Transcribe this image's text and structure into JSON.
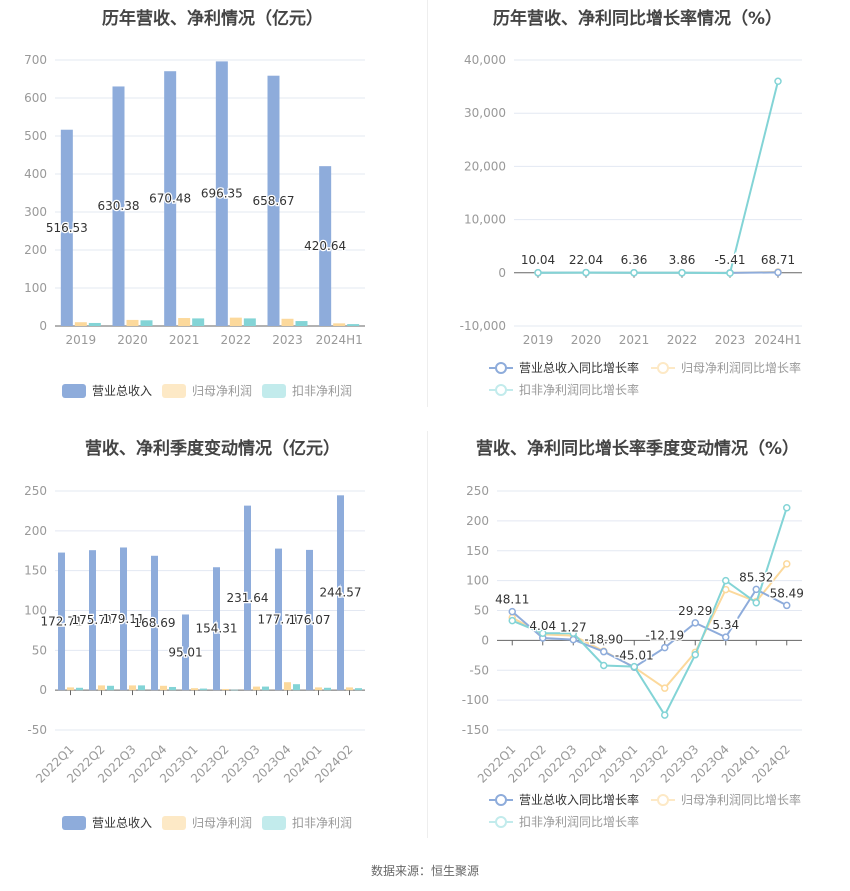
{
  "footer": {
    "source_label": "数据来源：恒生聚源"
  },
  "colors": {
    "revenue": "#8eacdb",
    "net_profit": "#fcd99c",
    "deducted_profit": "#83d4d6",
    "grid": "#e3e8f2",
    "axis": "#666666",
    "tick_text": "#999999",
    "label_text": "#333333"
  },
  "chart_data": [
    {
      "id": "annual_amount",
      "type": "bar",
      "title": "历年营收、净利情况（亿元）",
      "categories": [
        "2019",
        "2020",
        "2021",
        "2022",
        "2023",
        "2024H1"
      ],
      "series": [
        {
          "name": "营业总收入",
          "values": [
            516.53,
            630.38,
            670.48,
            696.35,
            658.67,
            420.64
          ],
          "labeled": true
        },
        {
          "name": "归母净利润",
          "values": [
            10,
            16,
            21,
            22,
            19,
            7
          ]
        },
        {
          "name": "扣非净利润",
          "values": [
            8,
            15,
            20,
            20,
            13,
            5
          ]
        }
      ],
      "yticks": [
        0,
        100,
        200,
        300,
        400,
        500,
        600,
        700
      ],
      "ylim": [
        0,
        700
      ],
      "grid": true,
      "legend_position": "bottom"
    },
    {
      "id": "annual_growth",
      "type": "line",
      "title": "历年营收、净利同比增长率情况（%）",
      "categories": [
        "2019",
        "2020",
        "2021",
        "2022",
        "2023",
        "2024H1"
      ],
      "series": [
        {
          "name": "营业总收入同比增长率",
          "values": [
            10.04,
            22.04,
            6.36,
            3.86,
            -5.41,
            68.71
          ],
          "labeled": true
        },
        {
          "name": "归母净利润同比增长率",
          "values": [
            20,
            30,
            15,
            5,
            -10,
            160
          ]
        },
        {
          "name": "扣非净利润同比增长率",
          "values": [
            15,
            40,
            20,
            0,
            -50,
            36000
          ]
        }
      ],
      "yticks": [
        -10000,
        0,
        10000,
        20000,
        30000,
        40000
      ],
      "ytick_labels": [
        "-10,000",
        "0",
        "10,000",
        "20,000",
        "30,000",
        "40,000"
      ],
      "ylim": [
        -10000,
        40000
      ],
      "grid": true,
      "legend_position": "bottom"
    },
    {
      "id": "quarterly_amount",
      "type": "bar",
      "title": "营收、净利季度变动情况（亿元）",
      "categories": [
        "2022Q1",
        "2022Q2",
        "2022Q3",
        "2022Q4",
        "2023Q1",
        "2023Q2",
        "2023Q3",
        "2023Q4",
        "2024Q1",
        "2024Q2"
      ],
      "series": [
        {
          "name": "营业总收入",
          "values": [
            172.71,
            175.71,
            179.11,
            168.69,
            95.01,
            154.31,
            231.64,
            177.71,
            176.07,
            244.57
          ],
          "labeled": true,
          "display_labels": [
            "172.71",
            "175.71",
            "179.11",
            "168.69",
            "95.01",
            "154.31",
            "231.64",
            "177.71",
            "176.07",
            "244.57"
          ]
        },
        {
          "name": "归母净利润",
          "values": [
            3.5,
            6,
            6,
            5.5,
            2.5,
            1.5,
            4.5,
            10,
            3.5,
            3.5
          ]
        },
        {
          "name": "扣非净利润",
          "values": [
            3,
            5.5,
            6,
            4,
            2,
            0.5,
            4.5,
            7.5,
            3,
            2.5
          ]
        }
      ],
      "yticks": [
        -50,
        0,
        50,
        100,
        150,
        200,
        250
      ],
      "ylim": [
        -50,
        250
      ],
      "grid": true,
      "legend_position": "bottom"
    },
    {
      "id": "quarterly_growth",
      "type": "line",
      "title": "营收、净利同比增长率季度变动情况（%）",
      "categories": [
        "2022Q1",
        "2022Q2",
        "2022Q3",
        "2022Q4",
        "2023Q1",
        "2023Q2",
        "2023Q3",
        "2023Q4",
        "2024Q1",
        "2024Q2"
      ],
      "series": [
        {
          "name": "营业总收入同比增长率",
          "values": [
            48.11,
            4.04,
            1.27,
            -18.9,
            -45.01,
            -12.19,
            29.29,
            5.34,
            85.32,
            58.49
          ],
          "labeled": true,
          "display_labels": [
            "48.11",
            "4.04",
            "1.27",
            "-18.90",
            "-45.01",
            "-12.19",
            "29.29",
            "5.34",
            "85.32",
            "58.49"
          ]
        },
        {
          "name": "归母净利润同比增长率",
          "values": [
            38,
            10,
            8,
            -18,
            -45,
            -80,
            -20,
            85,
            65,
            128
          ]
        },
        {
          "name": "扣非净利润同比增长率",
          "values": [
            33,
            12,
            12,
            -42,
            -44,
            -125,
            -24,
            100,
            63,
            222
          ]
        }
      ],
      "yticks": [
        -150,
        -100,
        -50,
        0,
        50,
        100,
        150,
        200,
        250
      ],
      "ylim": [
        -150,
        250
      ],
      "grid": true,
      "legend_position": "bottom"
    }
  ]
}
